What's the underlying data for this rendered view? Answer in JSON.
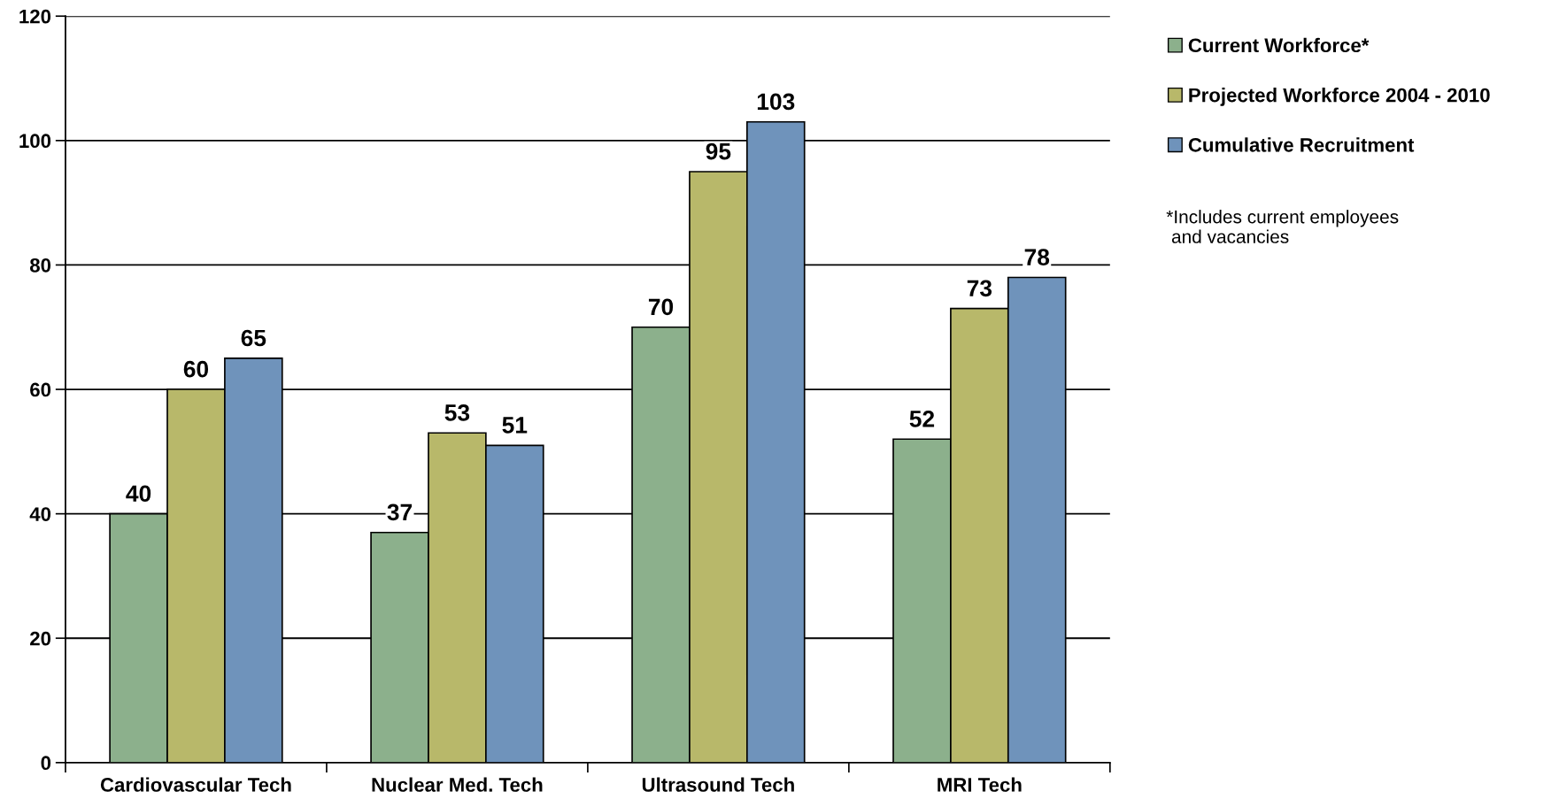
{
  "chart_data": {
    "type": "bar",
    "categories": [
      "Cardiovascular Tech",
      "Nuclear Med. Tech",
      "Ultrasound Tech",
      "MRI Tech"
    ],
    "series": [
      {
        "name": "Current Workforce*",
        "color": "#8cb08c",
        "values": [
          40,
          37,
          70,
          52
        ]
      },
      {
        "name": "Projected Workforce 2004 - 2010",
        "color": "#b8b86a",
        "values": [
          60,
          53,
          95,
          73
        ]
      },
      {
        "name": "Cumulative Recruitment",
        "color": "#6f93bb",
        "values": [
          65,
          51,
          103,
          78
        ]
      }
    ],
    "ylim": [
      0,
      120
    ],
    "yticks": [
      0,
      20,
      40,
      60,
      80,
      100,
      120
    ],
    "grid": "y",
    "legend": "top right",
    "data_labels": true,
    "annotations": [
      "*Includes current employees\n and vacancies"
    ]
  }
}
